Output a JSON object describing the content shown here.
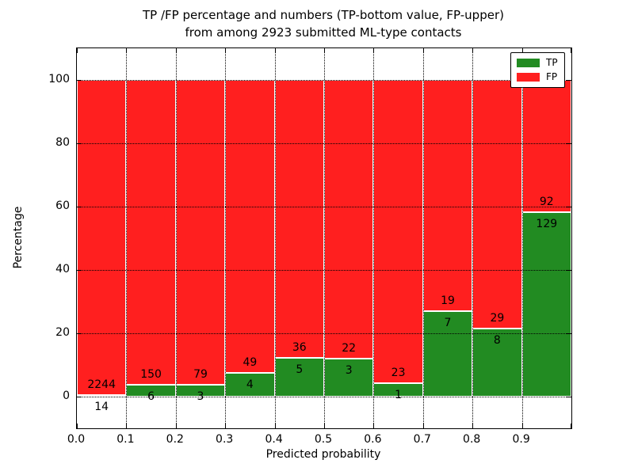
{
  "title": {
    "line1": "TP /FP percentage and numbers (TP-bottom value, FP-upper)",
    "line2": "from among 2923 submitted ML-type contacts"
  },
  "chart_data": {
    "type": "bar",
    "stacked": true,
    "normalized_to_percent": true,
    "title": "TP /FP percentage and numbers (TP-bottom value, FP-upper) from among 2923 submitted ML-type contacts",
    "xlabel": "Predicted probability",
    "ylabel": "Percentage",
    "bin_edges": [
      0.0,
      0.1,
      0.2,
      0.3,
      0.4,
      0.5,
      0.6,
      0.7,
      0.8,
      0.9,
      1.0
    ],
    "series": [
      {
        "name": "TP",
        "color": "#228b22",
        "counts": [
          14,
          6,
          3,
          4,
          5,
          3,
          1,
          7,
          8,
          129
        ]
      },
      {
        "name": "FP",
        "color": "#ff1f1f",
        "counts": [
          2244,
          150,
          79,
          49,
          36,
          22,
          23,
          19,
          29,
          92
        ]
      }
    ],
    "tp_percent_of_bin": [
      0.62,
      3.85,
      3.66,
      7.55,
      12.2,
      12.0,
      4.17,
      26.92,
      21.62,
      58.37
    ],
    "bar_total_percent": 100,
    "yticks": [
      0,
      20,
      40,
      60,
      80,
      100
    ],
    "xtick_labels": [
      "0.0",
      "0.1",
      "0.2",
      "0.3",
      "0.4",
      "0.5",
      "0.6",
      "0.7",
      "0.8",
      "0.9"
    ],
    "ylim": [
      -10,
      110
    ],
    "xlim": [
      0.0,
      1.0
    ],
    "grid": "dotted, drawn above bars",
    "legend": {
      "position": "upper right",
      "entries": [
        "TP",
        "FP"
      ]
    },
    "bar_edge_color": "#ffffff",
    "text_color": "#000000",
    "background_color": "#ffffff"
  }
}
